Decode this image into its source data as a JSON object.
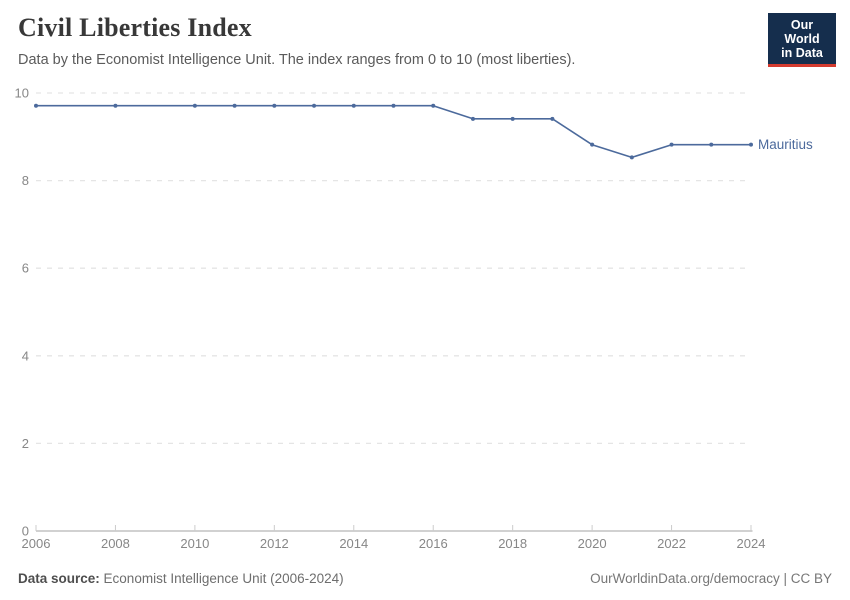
{
  "header": {
    "title": "Civil Liberties Index",
    "subtitle": "Data by the Economist Intelligence Unit. The index ranges from 0 to 10 (most liberties)."
  },
  "logo": {
    "line1": "Our World",
    "line2": "in Data",
    "bg_color": "#152e4d",
    "accent_color": "#d43b2f"
  },
  "chart_data": {
    "type": "line",
    "title": "Civil Liberties Index",
    "xlabel": "",
    "ylabel": "",
    "xlim": [
      2006,
      2024
    ],
    "ylim": [
      0,
      10
    ],
    "xticks": [
      2006,
      2008,
      2010,
      2012,
      2014,
      2016,
      2018,
      2020,
      2022,
      2024
    ],
    "yticks": [
      0,
      2,
      4,
      6,
      8,
      10
    ],
    "grid": "horizontal-dashed",
    "legend_position": "end-of-line-label",
    "series": [
      {
        "name": "Mauritius",
        "color": "#4C6A9C",
        "points": [
          [
            2006,
            9.71
          ],
          [
            2008,
            9.71
          ],
          [
            2010,
            9.71
          ],
          [
            2011,
            9.71
          ],
          [
            2012,
            9.71
          ],
          [
            2013,
            9.71
          ],
          [
            2014,
            9.71
          ],
          [
            2015,
            9.71
          ],
          [
            2016,
            9.71
          ],
          [
            2017,
            9.41
          ],
          [
            2018,
            9.41
          ],
          [
            2019,
            9.41
          ],
          [
            2020,
            8.82
          ],
          [
            2021,
            8.53
          ],
          [
            2022,
            8.82
          ],
          [
            2023,
            8.82
          ],
          [
            2024,
            8.82
          ]
        ]
      }
    ],
    "colors": {
      "gridline": "#e5e5e5",
      "axis_line": "#a3a3a3",
      "tick": "#cccccc",
      "tick_label": "#878787"
    }
  },
  "footer": {
    "source_label": "Data source:",
    "source_text": "Economist Intelligence Unit (2006-2024)",
    "credit": "OurWorldinData.org/democracy | CC BY"
  }
}
